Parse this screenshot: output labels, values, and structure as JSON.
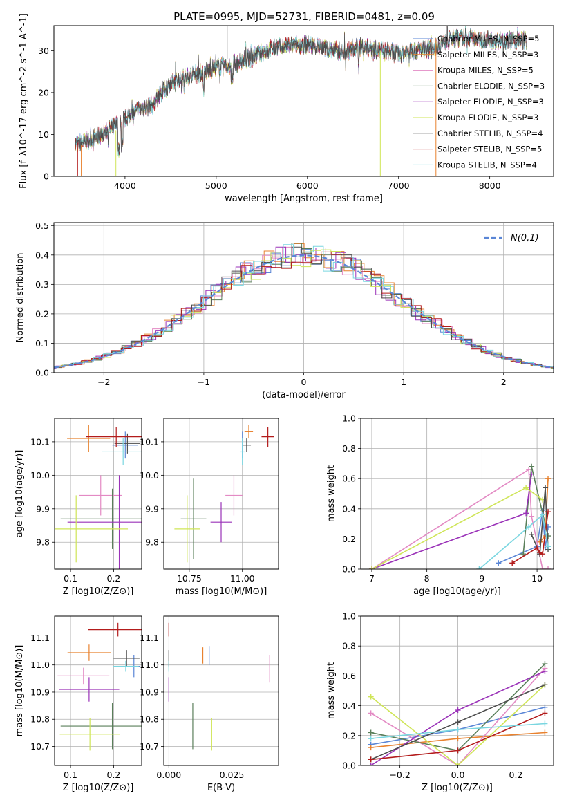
{
  "colors": {
    "chabrier_miles": "#5a86d6",
    "salpeter_miles": "#e8822f",
    "kroupa_miles": "#e38ac4",
    "chabrier_elodie": "#5a7f5a",
    "salpeter_elodie": "#9a32b8",
    "kroupa_elodie": "#cfe557",
    "chabrier_stelib": "#4d4d4d",
    "salpeter_stelib": "#b31b1b",
    "kroupa_stelib": "#7ad6e0",
    "gaussian": "#5a86d6",
    "grid": "#b0b0b0"
  },
  "chart_data": [
    {
      "id": "spectrum",
      "type": "line",
      "title": "PLATE=0995, MJD=52731, FIBERID=0481, z=0.09",
      "xlabel": "wavelength [Angstrom, rest frame]",
      "ylabel": "Flux [f_λ10^-17 erg cm^-2 s^-1 A^-1]",
      "xlim": [
        3220,
        8700
      ],
      "ylim": [
        0,
        36
      ],
      "xticks": [
        4000,
        5000,
        6000,
        7000,
        8000
      ],
      "yticks": [
        0,
        10,
        20,
        30
      ],
      "grid": false,
      "legend_position": "right",
      "continuum": [
        [
          3450,
          7.5
        ],
        [
          3700,
          9.5
        ],
        [
          3850,
          11.5
        ],
        [
          3950,
          13
        ],
        [
          4050,
          14.5
        ],
        [
          4150,
          16
        ],
        [
          4300,
          17
        ],
        [
          4400,
          20
        ],
        [
          4500,
          22
        ],
        [
          4650,
          23.5
        ],
        [
          4800,
          24.5
        ],
        [
          5000,
          26
        ],
        [
          5200,
          26.8
        ],
        [
          5400,
          28.5
        ],
        [
          5600,
          30.5
        ],
        [
          5800,
          31.2
        ],
        [
          6000,
          31.5
        ],
        [
          6200,
          30.5
        ],
        [
          6400,
          29.7
        ],
        [
          6600,
          31
        ],
        [
          6800,
          30
        ],
        [
          7000,
          29.3
        ],
        [
          7200,
          30
        ],
        [
          7400,
          31
        ],
        [
          7600,
          33
        ],
        [
          7800,
          33
        ],
        [
          8000,
          32.5
        ],
        [
          8200,
          32.5
        ],
        [
          8400,
          32.5
        ]
      ],
      "series": [
        {
          "name": "Chabrier MILES, N_SSP=5",
          "key": "chabrier_miles"
        },
        {
          "name": "Salpeter MILES, N_SSP=3",
          "key": "salpeter_miles"
        },
        {
          "name": "Kroupa MILES, N_SSP=5",
          "key": "kroupa_miles"
        },
        {
          "name": "Chabrier ELODIE, N_SSP=3",
          "key": "chabrier_elodie"
        },
        {
          "name": "Salpeter ELODIE, N_SSP=3",
          "key": "salpeter_elodie"
        },
        {
          "name": "Kroupa ELODIE, N_SSP=3",
          "key": "kroupa_elodie"
        },
        {
          "name": "Chabrier STELIB, N_SSP=4",
          "key": "chabrier_stelib"
        },
        {
          "name": "Salpeter STELIB, N_SSP=5",
          "key": "salpeter_stelib"
        },
        {
          "name": "Kroupa STELIB, N_SSP=4",
          "key": "kroupa_stelib"
        }
      ]
    },
    {
      "id": "residuals",
      "type": "line",
      "xlabel": "(data-model)/error",
      "ylabel": "Normed distribution",
      "xlim": [
        -2.5,
        2.5
      ],
      "ylim": [
        0,
        0.51
      ],
      "xticks": [
        -2,
        -1,
        0,
        1,
        2
      ],
      "yticks": [
        0.0,
        0.1,
        0.2,
        0.3,
        0.4,
        0.5
      ],
      "grid": true,
      "legend": [
        "N(0,1)"
      ],
      "legend_position": "top-right"
    },
    {
      "id": "age_vs_Z",
      "type": "scatter",
      "xlabel": "Z [log10(Z/Z⊙)]",
      "ylabel": "age  [log10(age/yr)]",
      "xlim": [
        0.063,
        0.265
      ],
      "ylim": [
        9.72,
        10.17
      ],
      "xticks": [
        0.1,
        0.2
      ],
      "yticks": [
        9.8,
        9.9,
        10.0,
        10.1
      ],
      "grid": true,
      "points": [
        {
          "key": "chabrier_miles",
          "x": 0.227,
          "xerr": 0.03,
          "y": 10.09,
          "yerr": 0.04
        },
        {
          "key": "salpeter_miles",
          "x": 0.142,
          "xerr": 0.05,
          "y": 10.11,
          "yerr": 0.04
        },
        {
          "key": "kroupa_miles",
          "x": 0.17,
          "xerr": 0.05,
          "y": 9.94,
          "yerr": 0.06
        },
        {
          "key": "chabrier_elodie",
          "x": 0.197,
          "xerr": 0.12,
          "y": 9.87,
          "yerr": 0.09
        },
        {
          "key": "salpeter_elodie",
          "x": 0.213,
          "xerr": 0.12,
          "y": 9.86,
          "yerr": 0.14
        },
        {
          "key": "kroupa_elodie",
          "x": 0.113,
          "xerr": 0.12,
          "y": 9.84,
          "yerr": 0.1
        },
        {
          "key": "chabrier_stelib",
          "x": 0.232,
          "xerr": 0.03,
          "y": 10.095,
          "yerr": 0.03
        },
        {
          "key": "salpeter_stelib",
          "x": 0.206,
          "xerr": 0.07,
          "y": 10.115,
          "yerr": 0.03
        },
        {
          "key": "kroupa_stelib",
          "x": 0.222,
          "xerr": 0.05,
          "y": 10.07,
          "yerr": 0.04
        }
      ]
    },
    {
      "id": "age_vs_mass",
      "type": "scatter",
      "xlabel": "mass [log10(M/M⊙)]",
      "ylabel": "",
      "xlim": [
        10.63,
        11.17
      ],
      "ylim": [
        9.72,
        10.17
      ],
      "xticks": [
        10.75,
        11.0
      ],
      "yticks": [
        9.8,
        9.9,
        10.0,
        10.1
      ],
      "grid": true,
      "points": [
        {
          "key": "chabrier_miles",
          "x": 11.0,
          "xerr": 0.0,
          "y": 10.09,
          "yerr": 0.04
        },
        {
          "key": "salpeter_miles",
          "x": 11.03,
          "xerr": 0.02,
          "y": 10.13,
          "yerr": 0.02
        },
        {
          "key": "kroupa_miles",
          "x": 10.96,
          "xerr": 0.04,
          "y": 9.94,
          "yerr": 0.06
        },
        {
          "key": "chabrier_elodie",
          "x": 10.77,
          "xerr": 0.06,
          "y": 9.87,
          "yerr": 0.12
        },
        {
          "key": "salpeter_elodie",
          "x": 10.9,
          "xerr": 0.05,
          "y": 9.86,
          "yerr": 0.06
        },
        {
          "key": "kroupa_elodie",
          "x": 10.74,
          "xerr": 0.06,
          "y": 9.84,
          "yerr": 0.1
        },
        {
          "key": "chabrier_stelib",
          "x": 11.02,
          "xerr": 0.02,
          "y": 10.09,
          "yerr": 0.02
        },
        {
          "key": "salpeter_stelib",
          "x": 11.12,
          "xerr": 0.03,
          "y": 10.115,
          "yerr": 0.03
        },
        {
          "key": "kroupa_stelib",
          "x": 11.0,
          "xerr": 0.01,
          "y": 10.07,
          "yerr": 0.04
        }
      ]
    },
    {
      "id": "weight_vs_age",
      "type": "line",
      "xlabel": "age  [log10(age/yr)]",
      "ylabel": "mass weight",
      "xlim": [
        6.8,
        10.3
      ],
      "ylim": [
        0,
        1.0
      ],
      "xticks": [
        7,
        8,
        9,
        10
      ],
      "yticks": [
        0.0,
        0.2,
        0.4,
        0.6,
        0.8,
        1.0
      ],
      "grid": true,
      "series": [
        {
          "key": "chabrier_miles",
          "x": [
            9.3,
            10.0,
            10.1,
            10.15,
            10.2
          ],
          "y": [
            0.04,
            0.15,
            0.39,
            0.14,
            0.28
          ]
        },
        {
          "key": "salpeter_miles",
          "x": [
            10.05,
            10.15,
            10.2
          ],
          "y": [
            0.18,
            0.22,
            0.6
          ]
        },
        {
          "key": "kroupa_miles",
          "x": [
            7.0,
            9.85,
            9.9,
            10.1,
            10.2
          ],
          "y": [
            0.0,
            0.66,
            0.35,
            0.0,
            0.0
          ]
        },
        {
          "key": "chabrier_elodie",
          "x": [
            9.75,
            9.9,
            10.2
          ],
          "y": [
            0.1,
            0.68,
            0.22
          ]
        },
        {
          "key": "salpeter_elodie",
          "x": [
            7.0,
            9.8,
            9.9
          ],
          "y": [
            0.0,
            0.37,
            0.63
          ]
        },
        {
          "key": "kroupa_elodie",
          "x": [
            7.0,
            9.8,
            10.1
          ],
          "y": [
            0.0,
            0.54,
            0.46
          ]
        },
        {
          "key": "chabrier_stelib",
          "x": [
            9.9,
            10.05,
            10.15,
            10.2
          ],
          "y": [
            0.23,
            0.1,
            0.54,
            0.13
          ]
        },
        {
          "key": "salpeter_stelib",
          "x": [
            9.55,
            10.0,
            10.05,
            10.1,
            10.2
          ],
          "y": [
            0.04,
            0.14,
            0.11,
            0.1,
            0.38
          ]
        },
        {
          "key": "kroupa_stelib",
          "x": [
            8.95,
            9.85,
            10.1,
            10.2
          ],
          "y": [
            0.0,
            0.28,
            0.36,
            0.15
          ]
        }
      ]
    },
    {
      "id": "mass_vs_Z",
      "type": "scatter",
      "xlabel": "Z [log10(Z/Z⊙)]",
      "ylabel": "mass [log10(M/M⊙)]",
      "xlim": [
        0.063,
        0.265
      ],
      "ylim": [
        10.63,
        11.18
      ],
      "xticks": [
        0.1,
        0.2
      ],
      "yticks": [
        10.7,
        10.8,
        10.9,
        11.0,
        11.1
      ],
      "grid": true,
      "points": [
        {
          "key": "chabrier_miles",
          "x": 0.247,
          "xerr": 0.015,
          "y": 10.995,
          "yerr": 0.04
        },
        {
          "key": "salpeter_miles",
          "x": 0.143,
          "xerr": 0.05,
          "y": 11.045,
          "yerr": 0.03
        },
        {
          "key": "kroupa_miles",
          "x": 0.13,
          "xerr": 0.06,
          "y": 10.96,
          "yerr": 0.03
        },
        {
          "key": "chabrier_elodie",
          "x": 0.197,
          "xerr": 0.12,
          "y": 10.775,
          "yerr": 0.085
        },
        {
          "key": "salpeter_elodie",
          "x": 0.143,
          "xerr": 0.07,
          "y": 10.91,
          "yerr": 0.045
        },
        {
          "key": "kroupa_elodie",
          "x": 0.145,
          "xerr": 0.07,
          "y": 10.745,
          "yerr": 0.06
        },
        {
          "key": "chabrier_stelib",
          "x": 0.23,
          "xerr": 0.03,
          "y": 11.025,
          "yerr": 0.03
        },
        {
          "key": "salpeter_stelib",
          "x": 0.21,
          "xerr": 0.07,
          "y": 11.13,
          "yerr": 0.025
        },
        {
          "key": "kroupa_stelib",
          "x": 0.228,
          "xerr": 0.03,
          "y": 10.995,
          "yerr": 0.02
        }
      ]
    },
    {
      "id": "mass_vs_ebv",
      "type": "scatter",
      "xlabel": "E(B-V)",
      "ylabel": "",
      "xlim": [
        -0.002,
        0.0435
      ],
      "ylim": [
        10.63,
        11.18
      ],
      "xticks": [
        0.0,
        0.025
      ],
      "xtick_labels": [
        "0.000",
        "0.025"
      ],
      "yticks": [
        10.7,
        10.8,
        10.9,
        11.0,
        11.1
      ],
      "grid": true,
      "points": [
        {
          "key": "chabrier_miles",
          "x": 0.016,
          "xerr": 0,
          "y": 11.035,
          "yerr": 0.035
        },
        {
          "key": "salpeter_miles",
          "x": 0.0135,
          "xerr": 0,
          "y": 11.035,
          "yerr": 0.03
        },
        {
          "key": "kroupa_miles",
          "x": 0.04,
          "xerr": 0,
          "y": 10.985,
          "yerr": 0.05
        },
        {
          "key": "chabrier_elodie",
          "x": 0.0095,
          "xerr": 0,
          "y": 10.775,
          "yerr": 0.085
        },
        {
          "key": "salpeter_elodie",
          "x": 0.0,
          "xerr": 0,
          "y": 10.91,
          "yerr": 0.045
        },
        {
          "key": "kroupa_elodie",
          "x": 0.017,
          "xerr": 0,
          "y": 10.745,
          "yerr": 0.06
        },
        {
          "key": "chabrier_stelib",
          "x": 0.0,
          "xerr": 0,
          "y": 11.025,
          "yerr": 0.03
        },
        {
          "key": "salpeter_stelib",
          "x": 0.0,
          "xerr": 0,
          "y": 11.13,
          "yerr": 0.025
        },
        {
          "key": "kroupa_stelib",
          "x": 0.0,
          "xerr": 0,
          "y": 10.995,
          "yerr": 0.02
        }
      ]
    },
    {
      "id": "weight_vs_Z",
      "type": "line",
      "xlabel": "Z [log10(Z/Z⊙)]",
      "ylabel": "mass weight",
      "xlim": [
        -0.335,
        0.33
      ],
      "ylim": [
        0,
        1.0
      ],
      "xticks": [
        -0.2,
        0.0,
        0.2
      ],
      "yticks": [
        0.0,
        0.2,
        0.4,
        0.6,
        0.8,
        1.0
      ],
      "grid": true,
      "series": [
        {
          "key": "chabrier_miles",
          "x": [
            -0.3,
            0.0,
            0.3
          ],
          "y": [
            0.14,
            0.24,
            0.39
          ]
        },
        {
          "key": "salpeter_miles",
          "x": [
            -0.3,
            0.0,
            0.3
          ],
          "y": [
            0.12,
            0.18,
            0.22
          ]
        },
        {
          "key": "kroupa_miles",
          "x": [
            -0.3,
            0.0,
            0.3
          ],
          "y": [
            0.35,
            0.0,
            0.65
          ]
        },
        {
          "key": "chabrier_elodie",
          "x": [
            -0.3,
            0.0,
            0.3
          ],
          "y": [
            0.22,
            0.1,
            0.68
          ]
        },
        {
          "key": "salpeter_elodie",
          "x": [
            -0.3,
            0.0,
            0.3
          ],
          "y": [
            0.0,
            0.37,
            0.63
          ]
        },
        {
          "key": "kroupa_elodie",
          "x": [
            -0.3,
            0.0,
            0.3
          ],
          "y": [
            0.46,
            0.0,
            0.54
          ]
        },
        {
          "key": "chabrier_stelib",
          "x": [
            -0.3,
            0.0,
            0.3
          ],
          "y": [
            0.04,
            0.29,
            0.54
          ]
        },
        {
          "key": "salpeter_stelib",
          "x": [
            -0.3,
            0.0,
            0.3
          ],
          "y": [
            0.04,
            0.1,
            0.35
          ]
        },
        {
          "key": "kroupa_stelib",
          "x": [
            -0.3,
            0.0,
            0.3
          ],
          "y": [
            0.18,
            0.24,
            0.28
          ]
        }
      ]
    }
  ]
}
